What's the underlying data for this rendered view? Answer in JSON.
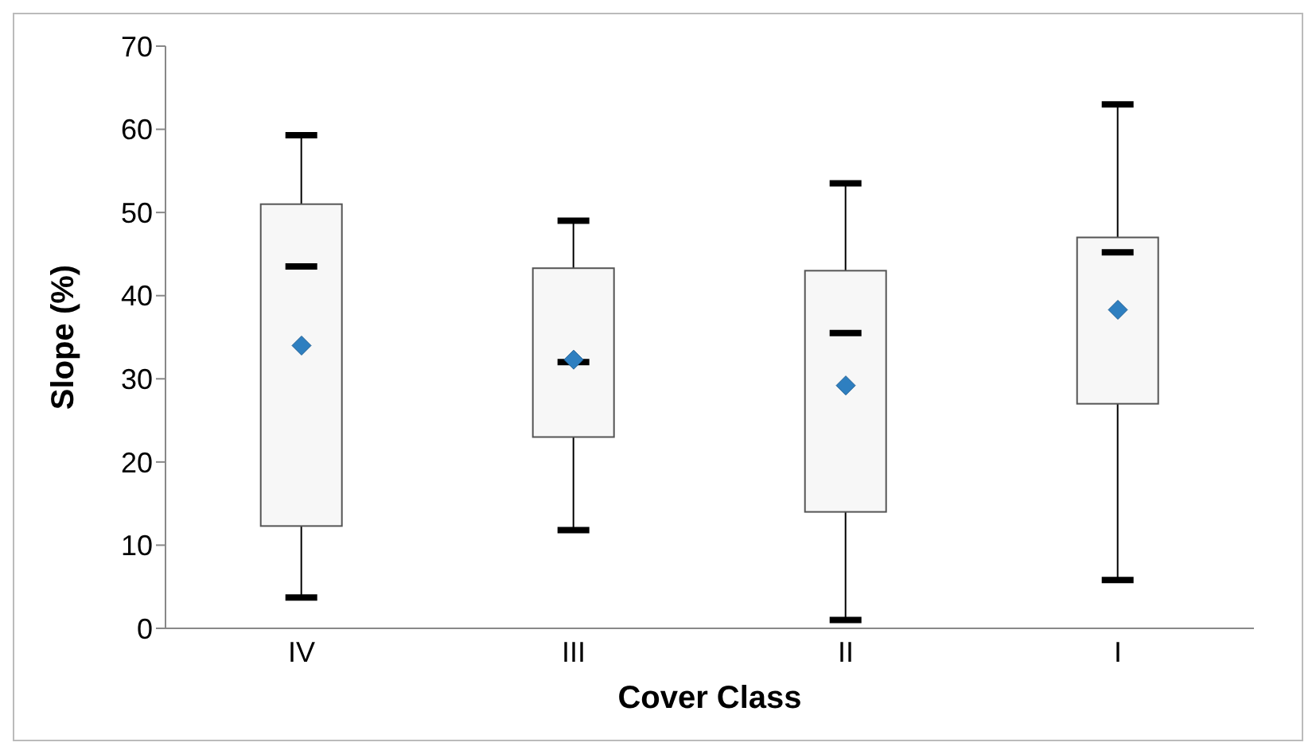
{
  "chart_data": {
    "type": "box",
    "xlabel": "Cover Class",
    "ylabel": "Slope (%)",
    "categories": [
      "IV",
      "III",
      "II",
      "I"
    ],
    "boxes": [
      {
        "low": 3.7,
        "q1": 12.3,
        "median": 43.5,
        "q3": 51,
        "high": 59.3,
        "mean": 34
      },
      {
        "low": 11.8,
        "q1": 23,
        "median": 32,
        "q3": 43.3,
        "high": 49,
        "mean": 32.3
      },
      {
        "low": 1,
        "q1": 14,
        "median": 35.5,
        "q3": 43,
        "high": 53.5,
        "mean": 29.2
      },
      {
        "low": 5.8,
        "q1": 27,
        "median": 45.2,
        "q3": 47,
        "high": 63,
        "mean": 38.3
      }
    ],
    "marker": "diamond",
    "ylim": [
      0,
      70
    ],
    "yticks": [
      0,
      10,
      20,
      30,
      40,
      50,
      60,
      70
    ],
    "legend": false
  }
}
